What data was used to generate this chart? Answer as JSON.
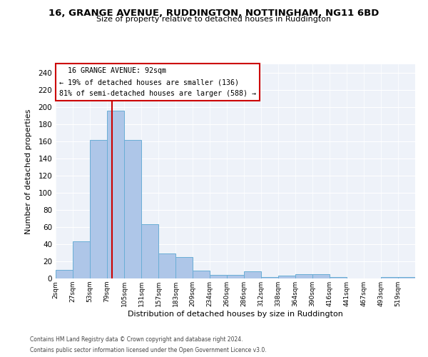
{
  "title": "16, GRANGE AVENUE, RUDDINGTON, NOTTINGHAM, NG11 6BD",
  "subtitle": "Size of property relative to detached houses in Ruddington",
  "xlabel": "Distribution of detached houses by size in Ruddington",
  "ylabel": "Number of detached properties",
  "bar_color": "#aec6e8",
  "bar_edge_color": "#6aaed6",
  "categories": [
    "2sqm",
    "27sqm",
    "53sqm",
    "79sqm",
    "105sqm",
    "131sqm",
    "157sqm",
    "183sqm",
    "209sqm",
    "234sqm",
    "260sqm",
    "286sqm",
    "312sqm",
    "338sqm",
    "364sqm",
    "390sqm",
    "416sqm",
    "441sqm",
    "467sqm",
    "493sqm",
    "519sqm"
  ],
  "values": [
    10,
    43,
    162,
    196,
    162,
    63,
    29,
    25,
    9,
    4,
    4,
    8,
    2,
    3,
    5,
    5,
    2,
    0,
    0,
    2,
    2
  ],
  "ylim": [
    0,
    250
  ],
  "yticks": [
    0,
    20,
    40,
    60,
    80,
    100,
    120,
    140,
    160,
    180,
    200,
    220,
    240
  ],
  "property_label": "16 GRANGE AVENUE: 92sqm",
  "pct_smaller": 19,
  "n_smaller": 136,
  "pct_larger_semi": 81,
  "n_larger_semi": 588,
  "vline_x": 3.3,
  "annotation_box_color": "#ffffff",
  "annotation_box_edge": "#cc0000",
  "vline_color": "#cc0000",
  "background_color": "#eef2f9",
  "footnote1": "Contains HM Land Registry data © Crown copyright and database right 2024.",
  "footnote2": "Contains public sector information licensed under the Open Government Licence v3.0."
}
